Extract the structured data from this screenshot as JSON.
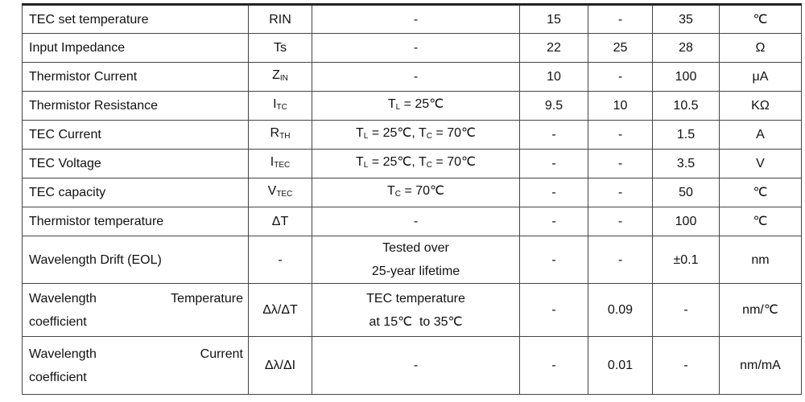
{
  "table": {
    "rows": [
      [
        "TEC set temperature",
        "RIN",
        "-",
        "15",
        "-",
        "35",
        "℃"
      ],
      [
        "Input Impedance",
        "Ts",
        "-",
        "22",
        "25",
        "28",
        "Ω"
      ],
      [
        "Thermistor Current",
        {
          "parts": [
            "Z",
            {
              "sub": "IN"
            }
          ]
        },
        "-",
        "10",
        "-",
        "100",
        "μA"
      ],
      [
        "Thermistor Resistance",
        {
          "parts": [
            "I",
            {
              "sub": "TC"
            }
          ]
        },
        {
          "parts": [
            "T",
            {
              "sub": "L"
            },
            " = 25℃"
          ]
        },
        "9.5",
        "10",
        "10.5",
        "KΩ"
      ],
      [
        "TEC Current",
        {
          "parts": [
            "R",
            {
              "sub": "TH"
            }
          ]
        },
        {
          "parts": [
            "T",
            {
              "sub": "L"
            },
            " = 25℃, T",
            {
              "sub": "C"
            },
            " = 70℃"
          ]
        },
        "-",
        "-",
        "1.5",
        "A"
      ],
      [
        "TEC Voltage",
        {
          "parts": [
            "I",
            {
              "sub": "TEC"
            }
          ]
        },
        {
          "parts": [
            "T",
            {
              "sub": "L"
            },
            " = 25℃, T",
            {
              "sub": "C"
            },
            " = 70℃"
          ]
        },
        "-",
        "-",
        "3.5",
        "V"
      ],
      [
        "TEC capacity",
        {
          "parts": [
            "V",
            {
              "sub": "TEC"
            }
          ]
        },
        {
          "parts": [
            "T",
            {
              "sub": "C"
            },
            " = 70℃"
          ]
        },
        "-",
        "-",
        "50",
        "℃"
      ],
      [
        "Thermistor temperature",
        "ΔT",
        "-",
        "-",
        "-",
        "100",
        "℃"
      ],
      [
        "Wavelength Drift (EOL)",
        "-",
        {
          "lines": [
            "Tested over",
            "25-year lifetime"
          ]
        },
        "-",
        "-",
        "±0.1",
        "nm"
      ],
      [
        {
          "lines": [
            "Wavelength Temperature",
            "coefficient"
          ]
        },
        "Δλ/ΔT",
        {
          "lines": [
            "TEC temperature",
            "at 15℃  to 35℃"
          ]
        },
        "-",
        "0.09",
        "-",
        "nm/℃"
      ],
      [
        {
          "lines": [
            "Wavelength Current",
            "coefficient"
          ]
        },
        "Δλ/ΔI",
        "-",
        "-",
        "0.01",
        "-",
        "nm/mA"
      ]
    ]
  }
}
